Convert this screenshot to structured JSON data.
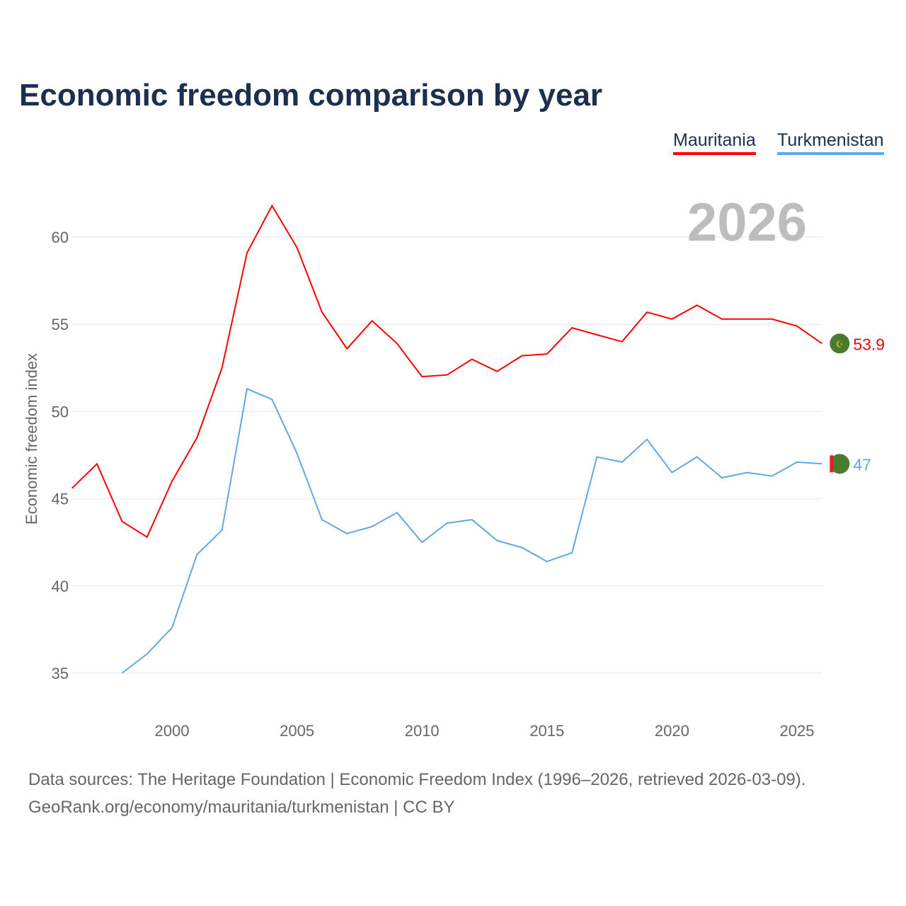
{
  "title": "Economic freedom comparison by year",
  "source_line1": "Data sources: The Heritage Foundation | Economic Freedom Index (1996–2026, retrieved 2026-03-09).",
  "source_line2": "GeoRank.org/economy/mauritania/turkmenistan | CC BY",
  "chart_data": {
    "type": "line",
    "title": "Economic freedom comparison by year",
    "ylabel": "Economic freedom index",
    "xlabel": "",
    "year_label": "2026",
    "xlim": [
      1996,
      2026
    ],
    "ylim": [
      32.5,
      63.5
    ],
    "xticks": [
      2000,
      2005,
      2010,
      2015,
      2020,
      2025
    ],
    "yticks": [
      35,
      40,
      45,
      50,
      55,
      60
    ],
    "grid": true,
    "legend_placement": "top-right",
    "series": [
      {
        "name": "Mauritania",
        "color": "#ff0000",
        "end_label": "53.9",
        "x": [
          1996,
          1997,
          1998,
          1999,
          2000,
          2001,
          2002,
          2003,
          2004,
          2005,
          2006,
          2007,
          2008,
          2009,
          2010,
          2011,
          2012,
          2013,
          2014,
          2015,
          2016,
          2017,
          2018,
          2019,
          2020,
          2021,
          2022,
          2023,
          2024,
          2025,
          2026
        ],
        "values": [
          45.6,
          47.0,
          43.7,
          42.8,
          46.0,
          48.5,
          52.5,
          59.1,
          61.8,
          59.4,
          55.7,
          53.6,
          55.2,
          53.9,
          52.0,
          52.1,
          53.0,
          52.3,
          53.2,
          53.3,
          54.8,
          54.4,
          54.0,
          55.7,
          55.3,
          56.1,
          55.3,
          55.3,
          55.3,
          54.9,
          53.9
        ]
      },
      {
        "name": "Turkmenistan",
        "color": "#60a8ea",
        "end_label": "47",
        "x": [
          1998,
          1999,
          2000,
          2001,
          2002,
          2003,
          2004,
          2005,
          2006,
          2007,
          2008,
          2009,
          2010,
          2011,
          2012,
          2013,
          2014,
          2015,
          2016,
          2017,
          2018,
          2019,
          2020,
          2021,
          2022,
          2023,
          2024,
          2025,
          2026
        ],
        "values": [
          35.0,
          36.1,
          37.6,
          41.8,
          43.2,
          51.3,
          50.7,
          47.6,
          43.8,
          43.0,
          43.4,
          44.2,
          42.5,
          43.6,
          43.8,
          42.6,
          42.2,
          41.4,
          41.9,
          47.4,
          47.1,
          48.4,
          46.5,
          47.4,
          46.2,
          46.5,
          46.3,
          47.1,
          47.0
        ]
      }
    ]
  }
}
